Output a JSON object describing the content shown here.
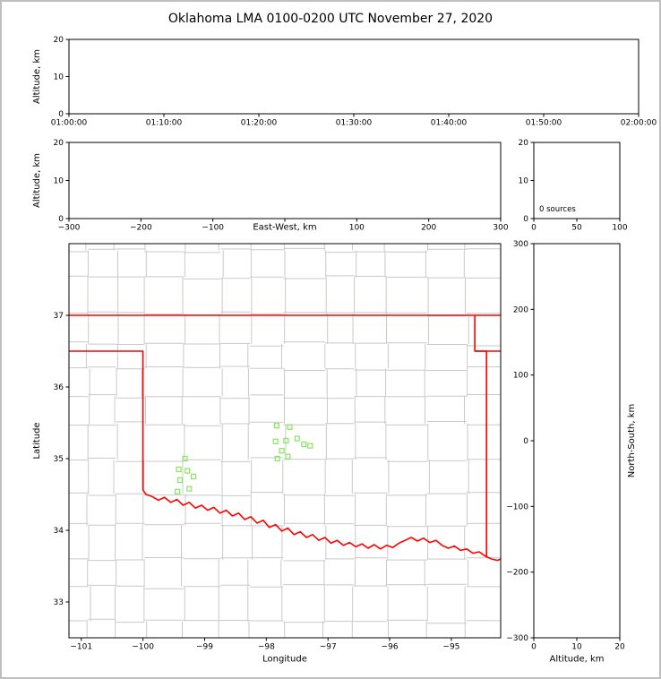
{
  "title": "Oklahoma LMA 0100-0200 UTC November 27, 2020",
  "colors": {
    "background": "#ffffff",
    "figure_frame": "#bfbfbf",
    "axis": "#000000",
    "counties": "#c9c9c9",
    "state_border": "#ff0000",
    "sources": "#85e65e"
  },
  "chart_data": [
    {
      "id": "time_height",
      "type": "scatter",
      "ylabel": "Altitude, km",
      "xlim": [
        0,
        3600
      ],
      "ylim": [
        0,
        20
      ],
      "xticks": {
        "pos": [
          0,
          600,
          1200,
          1800,
          2400,
          3000,
          3600
        ],
        "labels": [
          "01:00:00",
          "01:10:00",
          "01:20:00",
          "01:30:00",
          "01:40:00",
          "01:50:00",
          "02:00:00"
        ]
      },
      "yticks": [
        0,
        10,
        20
      ],
      "points": []
    },
    {
      "id": "ew_height",
      "type": "scatter",
      "xlabel": "East-West, km",
      "xlabel_inline": true,
      "ylabel": "Altitude, km",
      "xlim": [
        -300,
        300
      ],
      "ylim": [
        0,
        20
      ],
      "xticks": [
        -300,
        -200,
        -100,
        0,
        100,
        200,
        300
      ],
      "yticks": [
        0,
        10,
        20
      ],
      "points": []
    },
    {
      "id": "histogram",
      "type": "histogram",
      "annotation": "0 sources",
      "xlim": [
        0,
        100
      ],
      "ylim": [
        0,
        20
      ],
      "xticks": [
        0,
        50,
        100
      ],
      "yticks": [
        0,
        10,
        20
      ],
      "points": []
    },
    {
      "id": "plan_view",
      "type": "scatter",
      "xlabel": "Longitude",
      "ylabel": "Latitude",
      "xlim": [
        -101.2,
        -94.2
      ],
      "ylim": [
        32.5,
        38.0
      ],
      "xticks": [
        -101,
        -100,
        -99,
        -98,
        -97,
        -96,
        -95
      ],
      "yticks": [
        33,
        34,
        35,
        36,
        37
      ],
      "points": [
        [
          -97.83,
          35.46
        ],
        [
          -97.62,
          35.44
        ],
        [
          -97.5,
          35.28
        ],
        [
          -97.68,
          35.25
        ],
        [
          -97.85,
          35.24
        ],
        [
          -97.75,
          35.11
        ],
        [
          -97.65,
          35.03
        ],
        [
          -97.82,
          35.0
        ],
        [
          -97.29,
          35.18
        ],
        [
          -97.39,
          35.2
        ],
        [
          -99.32,
          35.0
        ],
        [
          -99.42,
          34.85
        ],
        [
          -99.28,
          34.83
        ],
        [
          -99.18,
          34.75
        ],
        [
          -99.4,
          34.7
        ],
        [
          -99.25,
          34.58
        ],
        [
          -99.44,
          34.54
        ]
      ],
      "state_lines": [
        {
          "name": "kansas-oklahoma-border-37n",
          "points": [
            [
              -101.2,
              37.0
            ],
            [
              -94.2,
              37.0
            ]
          ]
        },
        {
          "name": "oklahoma-west-border",
          "points": [
            [
              -101.2,
              36.5
            ],
            [
              -100.0,
              36.5
            ],
            [
              -100.0,
              34.56
            ]
          ]
        },
        {
          "name": "red-river-border",
          "points": [
            [
              -100.0,
              34.56
            ],
            [
              -99.95,
              34.5
            ],
            [
              -99.85,
              34.47
            ],
            [
              -99.75,
              34.42
            ],
            [
              -99.65,
              34.46
            ],
            [
              -99.55,
              34.39
            ],
            [
              -99.45,
              34.43
            ],
            [
              -99.35,
              34.35
            ],
            [
              -99.25,
              34.39
            ],
            [
              -99.15,
              34.31
            ],
            [
              -99.05,
              34.35
            ],
            [
              -98.95,
              34.28
            ],
            [
              -98.85,
              34.32
            ],
            [
              -98.75,
              34.24
            ],
            [
              -98.65,
              34.28
            ],
            [
              -98.55,
              34.2
            ],
            [
              -98.45,
              34.24
            ],
            [
              -98.35,
              34.15
            ],
            [
              -98.25,
              34.19
            ],
            [
              -98.15,
              34.1
            ],
            [
              -98.05,
              34.14
            ],
            [
              -97.95,
              34.04
            ],
            [
              -97.85,
              34.08
            ],
            [
              -97.75,
              33.99
            ],
            [
              -97.65,
              34.03
            ],
            [
              -97.55,
              33.94
            ],
            [
              -97.45,
              33.98
            ],
            [
              -97.35,
              33.9
            ],
            [
              -97.25,
              33.94
            ],
            [
              -97.15,
              33.86
            ],
            [
              -97.05,
              33.9
            ],
            [
              -96.95,
              33.82
            ],
            [
              -96.85,
              33.86
            ],
            [
              -96.75,
              33.79
            ],
            [
              -96.65,
              33.83
            ],
            [
              -96.55,
              33.77
            ],
            [
              -96.45,
              33.81
            ],
            [
              -96.35,
              33.75
            ],
            [
              -96.25,
              33.8
            ],
            [
              -96.15,
              33.74
            ],
            [
              -96.05,
              33.79
            ],
            [
              -95.95,
              33.76
            ],
            [
              -95.85,
              33.82
            ],
            [
              -95.75,
              33.86
            ],
            [
              -95.65,
              33.9
            ],
            [
              -95.55,
              33.85
            ],
            [
              -95.45,
              33.89
            ],
            [
              -95.35,
              33.83
            ],
            [
              -95.25,
              33.86
            ],
            [
              -95.15,
              33.79
            ],
            [
              -95.05,
              33.75
            ],
            [
              -94.95,
              33.78
            ],
            [
              -94.85,
              33.72
            ],
            [
              -94.75,
              33.74
            ],
            [
              -94.65,
              33.68
            ],
            [
              -94.55,
              33.7
            ],
            [
              -94.45,
              33.64
            ],
            [
              -94.35,
              33.6
            ],
            [
              -94.25,
              33.58
            ],
            [
              -94.2,
              33.6
            ]
          ]
        },
        {
          "name": "oklahoma-east-border",
          "points": [
            [
              -94.43,
              33.62
            ],
            [
              -94.43,
              36.5
            ],
            [
              -94.62,
              36.5
            ],
            [
              -94.62,
              37.0
            ]
          ]
        },
        {
          "name": "missouri-arkansas-border",
          "points": [
            [
              -94.62,
              36.5
            ],
            [
              -94.2,
              36.5
            ]
          ]
        }
      ],
      "counties": {
        "lon_min": -101.35,
        "lon_max": -94.1,
        "lat_min": 32.4,
        "lat_max": 38.1,
        "dlon": 0.55,
        "dlat": 0.42,
        "jitter": 0.08
      }
    },
    {
      "id": "ns_height",
      "type": "scatter",
      "xlabel": "Altitude, km",
      "ylabel": "North-South, km",
      "ylabel_right": true,
      "xlim": [
        0,
        20
      ],
      "ylim": [
        -300,
        300
      ],
      "xticks": [
        0,
        10,
        20
      ],
      "yticks": [
        -300,
        -200,
        -100,
        0,
        100,
        200,
        300
      ],
      "points": []
    }
  ]
}
